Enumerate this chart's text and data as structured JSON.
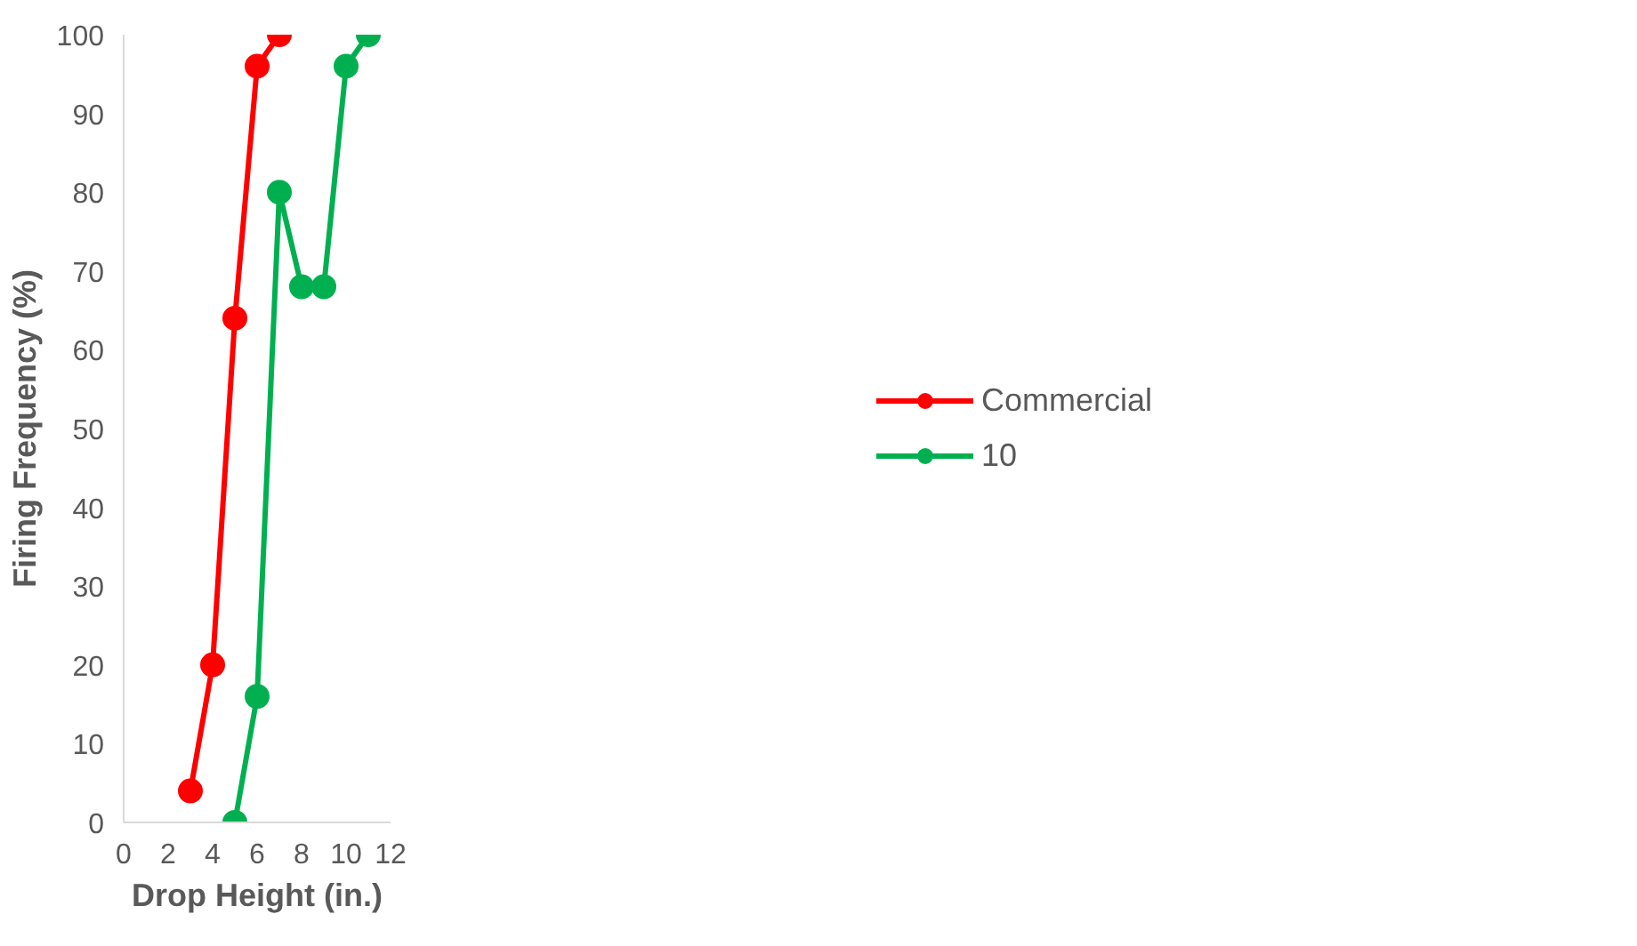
{
  "chart_data": {
    "type": "line",
    "xlabel": "Drop Height (in.)",
    "ylabel": "Firing Frequency (%)",
    "xlim": [
      0,
      12
    ],
    "xticks": [
      0,
      2,
      4,
      6,
      8,
      10,
      12
    ],
    "ylim": [
      0,
      100
    ],
    "yticks": [
      0,
      10,
      20,
      30,
      40,
      50,
      60,
      70,
      80,
      90,
      100
    ],
    "grid": false,
    "legend": "right",
    "marker": "circle",
    "line_style": "solid",
    "series": [
      {
        "name": "Commercial",
        "color": "#ff0000",
        "x": [
          3,
          4,
          5,
          6,
          7
        ],
        "values": [
          4,
          20,
          64,
          96,
          100
        ]
      },
      {
        "name": "10",
        "color": "#00b050",
        "x": [
          5,
          6,
          7,
          8,
          9,
          10,
          11
        ],
        "values": [
          0,
          16,
          80,
          68,
          68,
          96,
          100
        ]
      }
    ]
  }
}
